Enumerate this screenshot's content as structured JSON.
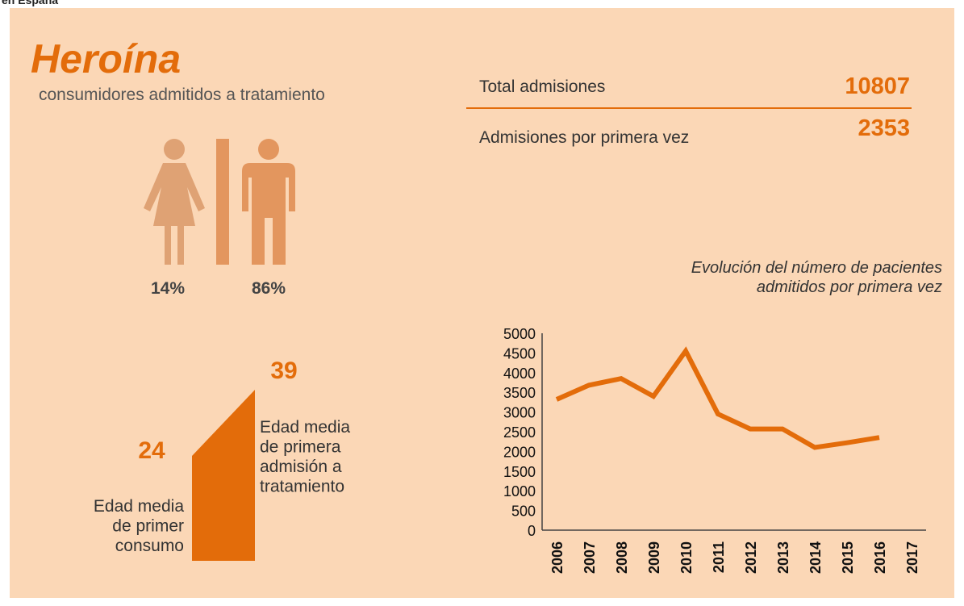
{
  "header": {
    "region": "en España",
    "title": "Heroína",
    "subtitle": "consumidores admitidos a tratamiento"
  },
  "stats": [
    {
      "label": "Total admisiones",
      "value": "10807"
    },
    {
      "label": "Admisiones por primera vez",
      "value": "2353"
    }
  ],
  "gender": {
    "female": "14%",
    "male": "86%"
  },
  "ages": {
    "first_use": {
      "value": "24",
      "lines": [
        "Edad media",
        "de primer",
        "consumo"
      ]
    },
    "first_admission": {
      "value": "39",
      "lines": [
        "Edad media",
        "de primera",
        "admisión a",
        "tratamiento"
      ]
    }
  },
  "chart_data": {
    "type": "line",
    "title": [
      "Evolución del número de pacientes",
      "admitidos por primera vez"
    ],
    "categories": [
      "2006",
      "2007",
      "2008",
      "2009",
      "2010",
      "2011",
      "2012",
      "2013",
      "2014",
      "2015",
      "2016",
      "2017"
    ],
    "series": [
      {
        "color": "#e36c0a",
        "values": [
          3320,
          3680,
          3850,
          3400,
          4550,
          2950,
          2570,
          2570,
          2100,
          2220,
          2353,
          null
        ]
      }
    ],
    "ylim": [
      0,
      5000
    ],
    "yticks": [
      0,
      500,
      1000,
      1500,
      2000,
      2500,
      3000,
      3500,
      4000,
      4500,
      5000
    ]
  }
}
